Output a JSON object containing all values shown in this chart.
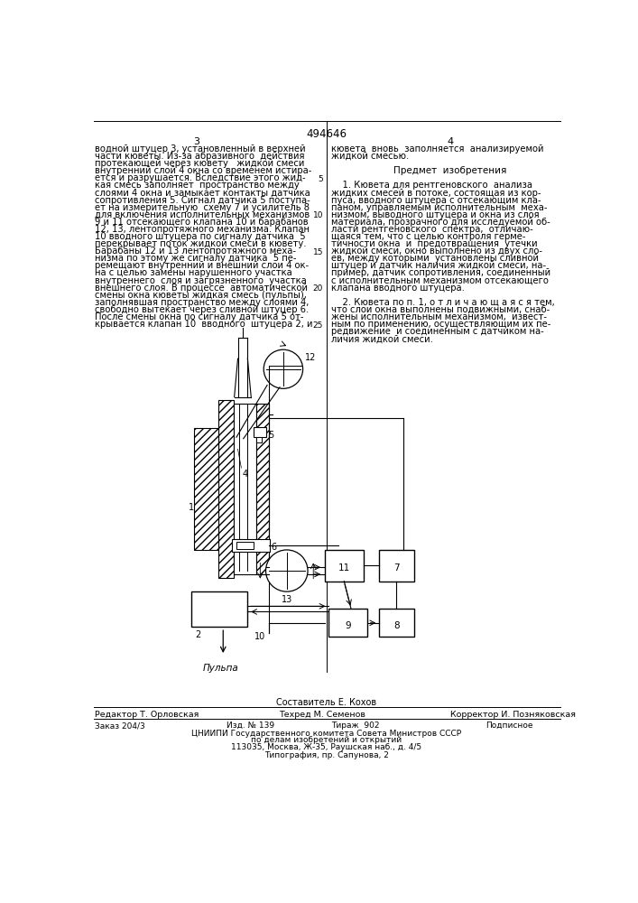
{
  "bg_color": "#ffffff",
  "page_width": 7.07,
  "page_height": 10.0,
  "patent_number": "494646",
  "col_left_num": "3",
  "col_right_num": "4",
  "text_left_lines": [
    "водной штуцер 3, установленный в верхней",
    "части кюветы. Из-за абразивного  действия",
    "протекающей через кювету   жидкой смеси",
    "внутренний слой 4 окна со временем истира-",
    "ется и разрушается. Вследствие этого жид-",
    "кая смесь заполняет  пространство между",
    "слоями 4 окна и замыкает контакты датчика",
    "сопротивления 5. Сигнал датчика 5 поступа-",
    "ет на измерительную  схему 7 и усилитель 8",
    "для включения исполнительных механизмов",
    "9 и 11 отсекающего клапана 10 и барабанов",
    "12, 13, лентопротяжного механизма. Клапан",
    "10 вводного штуцера по сигналу датчика  5",
    "перекрывает поток жидкой смеси в кювету.",
    "Барабаны 12 и 13 лентопротяжного меха-",
    "низма по этому же сигналу датчика  5 пе-",
    "ремещают внутренний и внешний слои 4 ок-",
    "на с целью замены нарушенного участка",
    "внутреннего  слоя и загрязненного  участка",
    "внешнего слоя. В процессе  автоматической",
    "смены окна кюветы жидкая смесь (пульпы),",
    "заполнявшая пространство между слоями 4,",
    "свободно вытекает через сливной штуцер 6.",
    "После смены окна по сигналу датчика 5 от-",
    "крывается клапан 10  вводного  штуцера 2, и"
  ],
  "text_right_lines": [
    "кювета  вновь  заполняется  анализируемой",
    "жидкой смесью.",
    "",
    "       Предмет  изобретения",
    "",
    "    1. Кювета для рентгеновского  анализа",
    "жидких смесей в потоке, состоящая из кор-",
    "пуса, вводного штуцера с отсекающим кла-",
    "паном, управляемым исполнительным  меха-",
    "низмом, выводного штуцера и окна из слоя",
    "материала, прозрачного для исследуемой об-",
    "ласти рентгеновского  спектра,  отличаю-",
    "щаяся тем, что с целью контроля герме-",
    "тичности окна  и  предотвращения  утечки",
    "жидкой смеси, окно выполнено из двух сло-",
    "ев, между которыми  установлены сливной",
    "штуцер и датчик наличия жидкой смеси, на-",
    "пример, датчик сопротивления, соединенный",
    "с исполнительным механизмом отсекающего",
    "клапана вводного штуцера.",
    "",
    "    2. Кювета по п. 1, о т л и ч а ю щ а я с я тем,",
    "что слои окна выполнены подвижными, снаб-",
    "жены исполнительным механизмом,  извест-",
    "ным по применению, осуществляющим их пе-",
    "редвижение  и соединенным с датчиком на-",
    "личия жидкой смеси."
  ],
  "line_numbers": [
    "5",
    "10",
    "15",
    "20",
    "25"
  ],
  "composer": "Составитель Е. Кохов",
  "editor": "Редактор Т. Орловская",
  "techred": "Техред М. Семенов",
  "corrector": "Корректор И. Позняковская",
  "order": "Заказ 204/3",
  "pub": "Изд. № 139",
  "tirazh": "Тираж  902",
  "podpisnoe": "Подписное",
  "tsniippi": "ЦНИИПИ Государственного комитета Совета Министров СССР",
  "address1": "по делам изобретений и открытий",
  "address2": "113035, Москва, Ж-35, Раушская наб., д. 4/5",
  "tipografia": "Типография, пр. Сапунова, 2"
}
